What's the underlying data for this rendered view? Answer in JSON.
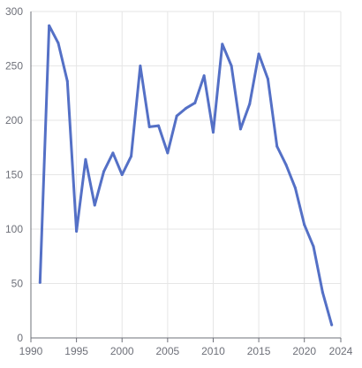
{
  "chart_data": {
    "type": "line",
    "title": "",
    "xlabel": "",
    "ylabel": "",
    "xlim": [
      1990,
      2024
    ],
    "ylim": [
      0,
      300
    ],
    "x_ticks": [
      1990,
      1995,
      2000,
      2005,
      2010,
      2015,
      2020,
      2024
    ],
    "y_ticks": [
      0,
      50,
      100,
      150,
      200,
      250,
      300
    ],
    "grid": true,
    "line_color": "#5470c6",
    "series": [
      {
        "x": [
          1991,
          1992,
          1993,
          1994,
          1995,
          1996,
          1997,
          1998,
          1999,
          2000,
          2001,
          2002,
          2003,
          2004,
          2005,
          2006,
          2007,
          2008,
          2009,
          2010,
          2011,
          2012,
          2013,
          2014,
          2015,
          2016,
          2017,
          2018,
          2019,
          2020,
          2021,
          2022,
          2023
        ],
        "values": [
          51,
          287,
          271,
          236,
          98,
          164,
          122,
          153,
          170,
          150,
          167,
          250,
          194,
          195,
          170,
          204,
          211,
          216,
          241,
          189,
          270,
          250,
          192,
          215,
          261,
          238,
          176,
          159,
          138,
          104,
          84,
          42,
          12
        ]
      }
    ]
  }
}
